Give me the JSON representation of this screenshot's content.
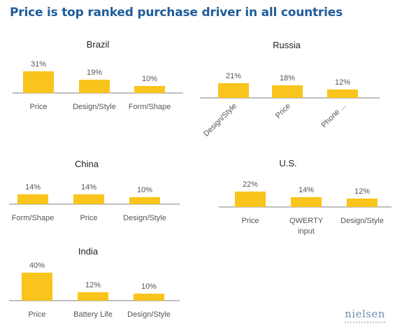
{
  "title": "Price is top ranked purchase driver in all countries",
  "logo": "nielsen",
  "colors": {
    "bar": "#F9C41B",
    "axis": "#7F7F7F",
    "title": "#1F5C99"
  },
  "chart_data": [
    {
      "type": "bar",
      "title": "Brazil",
      "categories": [
        "Price",
        "Design/Style",
        "Form/Shape"
      ],
      "values": [
        31,
        19,
        10
      ],
      "data_labels": [
        "31%",
        "19%",
        "10%"
      ],
      "rotated_ticks": false
    },
    {
      "type": "bar",
      "title": "Russia",
      "categories": [
        "Design/Style",
        "Price",
        "Phone ..."
      ],
      "values": [
        21,
        18,
        12
      ],
      "data_labels": [
        "21%",
        "18%",
        "12%"
      ],
      "rotated_ticks": true
    },
    {
      "type": "bar",
      "title": "China",
      "categories": [
        "Form/Shape",
        "Price",
        "Design/Style"
      ],
      "values": [
        14,
        14,
        10
      ],
      "data_labels": [
        "14%",
        "14%",
        "10%"
      ],
      "rotated_ticks": false
    },
    {
      "type": "bar",
      "title": "U.S.",
      "categories": [
        "Price",
        "QWERTY\ninput",
        "Design/Style"
      ],
      "values": [
        22,
        14,
        12
      ],
      "data_labels": [
        "22%",
        "14%",
        "12%"
      ],
      "rotated_ticks": false
    },
    {
      "type": "bar",
      "title": "India",
      "categories": [
        "Price",
        "Battery Life",
        "Design/Style"
      ],
      "values": [
        40,
        12,
        10
      ],
      "data_labels": [
        "40%",
        "12%",
        "10%"
      ],
      "rotated_ticks": false
    }
  ]
}
